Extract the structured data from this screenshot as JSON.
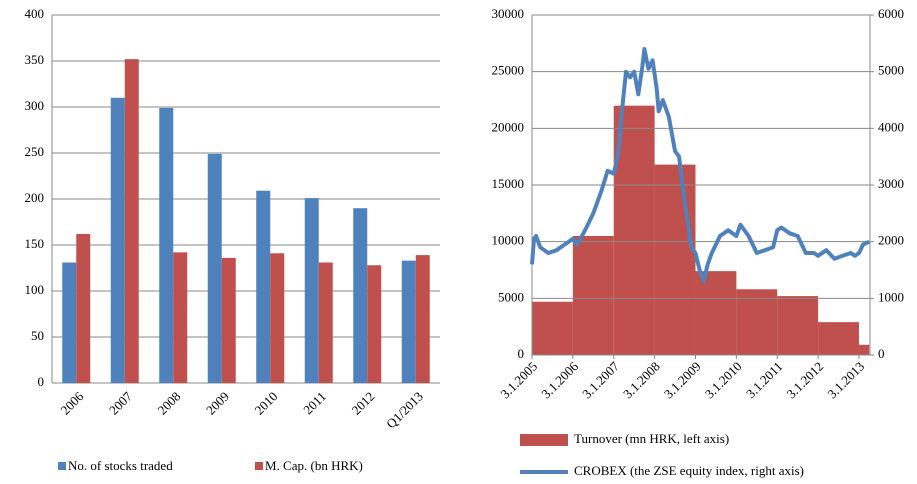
{
  "chart_data": [
    {
      "type": "bar",
      "categories": [
        "2006",
        "2007",
        "2008",
        "2009",
        "2010",
        "2011",
        "2012",
        "Q1/2013"
      ],
      "series": [
        {
          "name": "No. of stocks traded",
          "color": "#4f81bd",
          "values": [
            131,
            310,
            299,
            249,
            209,
            201,
            190,
            133
          ]
        },
        {
          "name": "M. Cap. (bn HRK)",
          "color": "#c0504d",
          "values": [
            162,
            352,
            142,
            136,
            141,
            131,
            128,
            139
          ]
        }
      ],
      "ylim": [
        0,
        400
      ],
      "yticks": [
        0,
        50,
        100,
        150,
        200,
        250,
        300,
        350,
        400
      ],
      "grid": true
    },
    {
      "type": "combo",
      "xlim": [
        2005,
        2013.27
      ],
      "xticks": [
        {
          "value": 2005,
          "label": "3.1.2005"
        },
        {
          "value": 2006,
          "label": "3.1.2006"
        },
        {
          "value": 2007,
          "label": "3.1.2007"
        },
        {
          "value": 2008,
          "label": "3.1.2008"
        },
        {
          "value": 2009,
          "label": "3.1.2009"
        },
        {
          "value": 2010,
          "label": "3.1.2010"
        },
        {
          "value": 2011,
          "label": "3.1.2011"
        },
        {
          "value": 2012,
          "label": "3.1.2012"
        },
        {
          "value": 2013,
          "label": "3.1.2013"
        }
      ],
      "ylim": [
        0,
        30000
      ],
      "yticks": [
        0,
        5000,
        10000,
        15000,
        20000,
        25000,
        30000
      ],
      "y2lim": [
        0,
        6000
      ],
      "y2ticks": [
        0,
        1000,
        2000,
        3000,
        4000,
        5000,
        6000
      ],
      "grid": true,
      "series": [
        {
          "name": "Turnover (mn HRK, left axis)",
          "color": "#c0504d",
          "type": "histogram",
          "bins": [
            2005,
            2006,
            2007,
            2008,
            2009,
            2010,
            2011,
            2012,
            2013,
            2013.25
          ],
          "values": [
            4700,
            10500,
            22000,
            16800,
            7400,
            5800,
            5200,
            2900,
            900
          ]
        },
        {
          "name": "CROBEX (the ZSE equity index, right axis)",
          "color": "#4f81bd",
          "type": "line",
          "axis": "y2",
          "x": [
            2005.0,
            2005.05,
            2005.1,
            2005.2,
            2005.4,
            2005.6,
            2005.8,
            2006.0,
            2006.1,
            2006.3,
            2006.5,
            2006.7,
            2006.85,
            2007.0,
            2007.1,
            2007.2,
            2007.3,
            2007.4,
            2007.5,
            2007.6,
            2007.7,
            2007.75,
            2007.85,
            2007.95,
            2008.05,
            2008.1,
            2008.2,
            2008.35,
            2008.5,
            2008.6,
            2008.7,
            2008.8,
            2008.9,
            2009.0,
            2009.1,
            2009.2,
            2009.3,
            2009.4,
            2009.5,
            2009.6,
            2009.8,
            2010.0,
            2010.1,
            2010.3,
            2010.5,
            2010.7,
            2010.9,
            2011.0,
            2011.1,
            2011.3,
            2011.5,
            2011.7,
            2011.9,
            2012.0,
            2012.2,
            2012.4,
            2012.6,
            2012.8,
            2012.9,
            2013.0,
            2013.1,
            2013.25
          ],
          "values": [
            1600,
            2050,
            2100,
            1900,
            1800,
            1850,
            1950,
            2050,
            1950,
            2200,
            2500,
            2900,
            3250,
            3200,
            3500,
            4300,
            5000,
            4900,
            5000,
            4600,
            5100,
            5400,
            5050,
            5200,
            4700,
            4300,
            4500,
            4200,
            3600,
            3500,
            2900,
            2400,
            1900,
            1800,
            1500,
            1300,
            1600,
            1800,
            1950,
            2100,
            2200,
            2100,
            2300,
            2100,
            1800,
            1850,
            1900,
            2200,
            2250,
            2150,
            2100,
            1800,
            1800,
            1750,
            1850,
            1700,
            1750,
            1800,
            1750,
            1800,
            1950,
            2000
          ]
        }
      ]
    }
  ]
}
